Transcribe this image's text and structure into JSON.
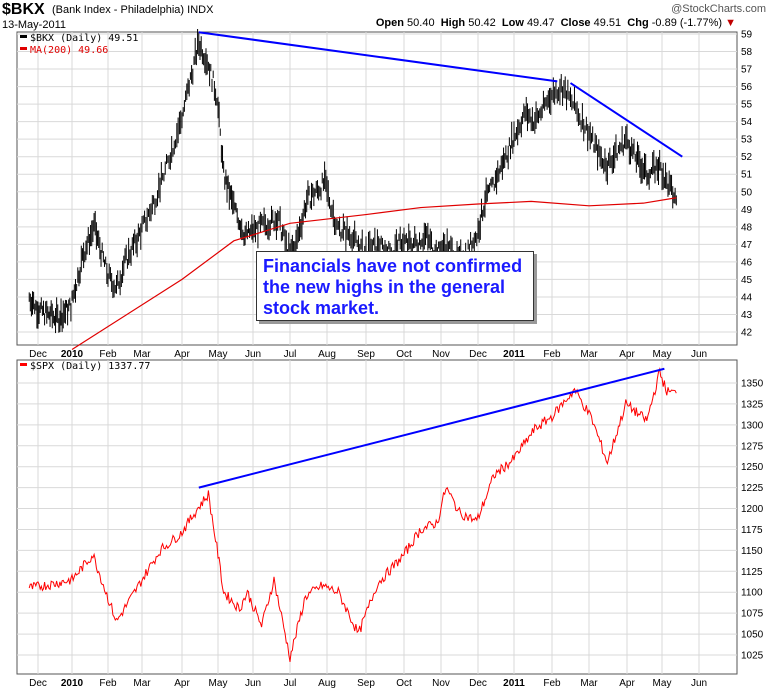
{
  "header": {
    "symbol": "$BKX",
    "description": "(Bank Index - Philadelphia)",
    "exchange": "INDX",
    "date": "13-May-2011",
    "logo": "@StockCharts.com",
    "open_label": "Open",
    "open": "50.40",
    "high_label": "High",
    "high": "50.42",
    "low_label": "Low",
    "low": "49.47",
    "close_label": "Close",
    "close": "49.51",
    "chg_label": "Chg",
    "chg": "-0.89 (-1.77%)"
  },
  "annotation": "Financials have not confirmed the new highs in the general stock market.",
  "colors": {
    "price": "#000000",
    "ma": "#e00000",
    "spx": "#ff0000",
    "trendline": "#0000ff",
    "grid": "#d9d9d9"
  },
  "chart_data": [
    {
      "type": "line",
      "legend": [
        {
          "name": "$BKX (Daily) 49.51"
        },
        {
          "name": "MA(200) 49.66"
        }
      ],
      "x_ticks": [
        "Dec",
        "2010",
        "Feb",
        "Mar",
        "Apr",
        "May",
        "Jun",
        "Jul",
        "Aug",
        "Sep",
        "Oct",
        "Nov",
        "Dec",
        "2011",
        "Feb",
        "Mar",
        "Apr",
        "May",
        "Jun"
      ],
      "y_ticks": [
        42,
        43,
        44,
        45,
        46,
        47,
        48,
        49,
        50,
        51,
        52,
        53,
        54,
        55,
        56,
        57,
        58,
        59
      ],
      "ylim": [
        41.2,
        59.8
      ],
      "grid": true,
      "series": [
        {
          "name": "$BKX (Daily)",
          "x": [
            "2009-11-23",
            "2009-12-01",
            "2009-12-10",
            "2009-12-20",
            "2009-12-31",
            "2010-01-11",
            "2010-01-20",
            "2010-02-01",
            "2010-02-08",
            "2010-02-15",
            "2010-02-25",
            "2010-03-08",
            "2010-03-18",
            "2010-03-31",
            "2010-04-10",
            "2010-04-15",
            "2010-04-22",
            "2010-04-30",
            "2010-05-06",
            "2010-05-13",
            "2010-05-25",
            "2010-06-07",
            "2010-06-21",
            "2010-06-30",
            "2010-07-06",
            "2010-07-15",
            "2010-07-30",
            "2010-08-09",
            "2010-08-20",
            "2010-08-31",
            "2010-09-10",
            "2010-09-21",
            "2010-09-30",
            "2010-10-07",
            "2010-10-19",
            "2010-10-29",
            "2010-11-05",
            "2010-11-16",
            "2010-11-30",
            "2010-12-07",
            "2010-12-15",
            "2010-12-31",
            "2011-01-10",
            "2011-01-18",
            "2011-01-31",
            "2011-02-08",
            "2011-02-17",
            "2011-02-28",
            "2011-03-10",
            "2011-03-16",
            "2011-03-31",
            "2011-04-08",
            "2011-04-18",
            "2011-04-29",
            "2011-05-05",
            "2011-05-13"
          ],
          "values": [
            44.0,
            43.3,
            43.0,
            42.8,
            43.5,
            46.5,
            48.0,
            45.2,
            44.5,
            46.0,
            47.3,
            49.0,
            51.0,
            54.0,
            57.0,
            58.5,
            57.5,
            55.5,
            51.0,
            49.5,
            47.5,
            48.0,
            48.5,
            46.5,
            47.0,
            49.5,
            50.5,
            48.0,
            47.5,
            46.5,
            47.0,
            46.5,
            47.2,
            47.0,
            47.5,
            46.5,
            47.0,
            46.0,
            47.5,
            49.5,
            50.5,
            53.0,
            54.5,
            54.0,
            55.5,
            56.0,
            55.0,
            53.5,
            52.0,
            51.5,
            53.0,
            52.0,
            51.0,
            51.5,
            50.5,
            49.51
          ]
        },
        {
          "name": "MA(200)",
          "x": [
            "2010-01-01",
            "2010-04-01",
            "2010-05-15",
            "2010-07-01",
            "2010-09-01",
            "2010-10-15",
            "2010-12-01",
            "2011-01-15",
            "2011-03-01",
            "2011-04-15",
            "2011-05-13"
          ],
          "values": [
            41.0,
            45.0,
            47.2,
            48.2,
            48.7,
            49.1,
            49.3,
            49.45,
            49.2,
            49.35,
            49.66
          ]
        }
      ],
      "trendlines": [
        {
          "x": [
            "2010-04-15",
            "2011-02-05"
          ],
          "values": [
            59.1,
            56.3
          ]
        },
        {
          "x": [
            "2011-02-15",
            "2011-05-18"
          ],
          "values": [
            56.2,
            52.0
          ]
        }
      ]
    },
    {
      "type": "line",
      "legend": [
        {
          "name": "$SPX (Daily) 1337.77"
        }
      ],
      "x_ticks": [
        "Dec",
        "2010",
        "Feb",
        "Mar",
        "Apr",
        "May",
        "Jun",
        "Jul",
        "Aug",
        "Sep",
        "Oct",
        "Nov",
        "Dec",
        "2011",
        "Feb",
        "Mar",
        "Apr",
        "May",
        "Jun"
      ],
      "y_ticks": [
        1025,
        1050,
        1075,
        1100,
        1125,
        1150,
        1175,
        1200,
        1225,
        1250,
        1275,
        1300,
        1325,
        1350
      ],
      "ylim": [
        1012,
        1368
      ],
      "grid": true,
      "series": [
        {
          "name": "$SPX (Daily)",
          "x": [
            "2009-11-23",
            "2009-12-15",
            "2010-01-01",
            "2010-01-19",
            "2010-02-08",
            "2010-02-25",
            "2010-03-15",
            "2010-03-31",
            "2010-04-14",
            "2010-04-23",
            "2010-05-06",
            "2010-05-20",
            "2010-05-27",
            "2010-06-08",
            "2010-06-18",
            "2010-07-01",
            "2010-07-14",
            "2010-07-28",
            "2010-08-10",
            "2010-08-26",
            "2010-09-10",
            "2010-09-30",
            "2010-10-15",
            "2010-10-29",
            "2010-11-05",
            "2010-11-16",
            "2010-11-30",
            "2010-12-15",
            "2010-12-31",
            "2011-01-18",
            "2011-02-01",
            "2011-02-18",
            "2011-03-03",
            "2011-03-16",
            "2011-03-31",
            "2011-04-18",
            "2011-04-29",
            "2011-05-05",
            "2011-05-13"
          ],
          "values": [
            1105,
            1110,
            1115,
            1145,
            1065,
            1105,
            1150,
            1170,
            1200,
            1217,
            1100,
            1080,
            1100,
            1060,
            1115,
            1022,
            1095,
            1108,
            1100,
            1050,
            1110,
            1143,
            1175,
            1183,
            1225,
            1195,
            1185,
            1240,
            1258,
            1295,
            1310,
            1342,
            1308,
            1255,
            1325,
            1305,
            1363,
            1340,
            1337.77
          ]
        }
      ],
      "trendlines": [
        {
          "x": [
            "2010-04-15",
            "2011-05-03"
          ],
          "values": [
            1225,
            1367
          ]
        }
      ]
    }
  ]
}
